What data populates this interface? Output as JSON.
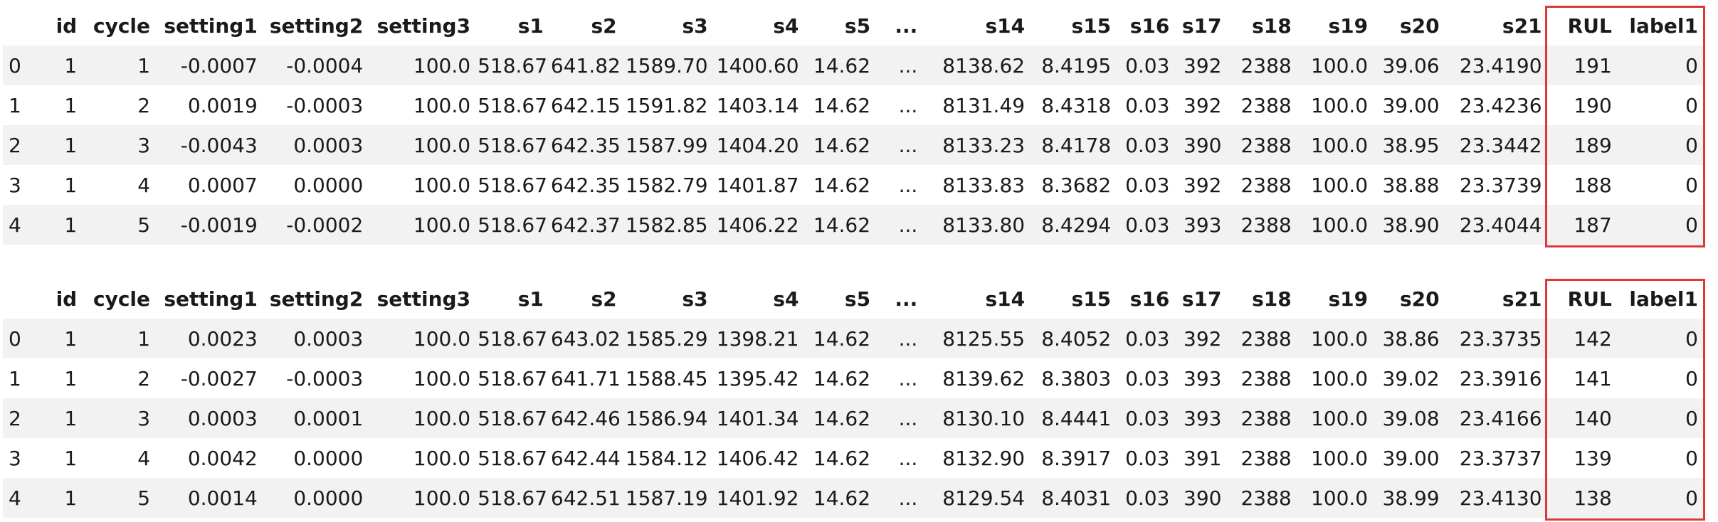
{
  "tables": [
    {
      "columns": [
        "",
        "id",
        "cycle",
        "setting1",
        "setting2",
        "setting3",
        "s1",
        "s2",
        "s3",
        "s4",
        "s5",
        "...",
        "s14",
        "s15",
        "s16",
        "s17",
        "s18",
        "s19",
        "s20",
        "s21",
        "RUL",
        "label1"
      ],
      "rows": [
        [
          "0",
          "1",
          "1",
          "-0.0007",
          "-0.0004",
          "100.0",
          "518.67",
          "641.82",
          "1589.70",
          "1400.60",
          "14.62",
          "...",
          "8138.62",
          "8.4195",
          "0.03",
          "392",
          "2388",
          "100.0",
          "39.06",
          "23.4190",
          "191",
          "0"
        ],
        [
          "1",
          "1",
          "2",
          "0.0019",
          "-0.0003",
          "100.0",
          "518.67",
          "642.15",
          "1591.82",
          "1403.14",
          "14.62",
          "...",
          "8131.49",
          "8.4318",
          "0.03",
          "392",
          "2388",
          "100.0",
          "39.00",
          "23.4236",
          "190",
          "0"
        ],
        [
          "2",
          "1",
          "3",
          "-0.0043",
          "0.0003",
          "100.0",
          "518.67",
          "642.35",
          "1587.99",
          "1404.20",
          "14.62",
          "...",
          "8133.23",
          "8.4178",
          "0.03",
          "390",
          "2388",
          "100.0",
          "38.95",
          "23.3442",
          "189",
          "0"
        ],
        [
          "3",
          "1",
          "4",
          "0.0007",
          "0.0000",
          "100.0",
          "518.67",
          "642.35",
          "1582.79",
          "1401.87",
          "14.62",
          "...",
          "8133.83",
          "8.3682",
          "0.03",
          "392",
          "2388",
          "100.0",
          "38.88",
          "23.3739",
          "188",
          "0"
        ],
        [
          "4",
          "1",
          "5",
          "-0.0019",
          "-0.0002",
          "100.0",
          "518.67",
          "642.37",
          "1582.85",
          "1406.22",
          "14.62",
          "...",
          "8133.80",
          "8.4294",
          "0.03",
          "393",
          "2388",
          "100.0",
          "38.90",
          "23.4044",
          "187",
          "0"
        ]
      ]
    },
    {
      "columns": [
        "",
        "id",
        "cycle",
        "setting1",
        "setting2",
        "setting3",
        "s1",
        "s2",
        "s3",
        "s4",
        "s5",
        "...",
        "s14",
        "s15",
        "s16",
        "s17",
        "s18",
        "s19",
        "s20",
        "s21",
        "RUL",
        "label1"
      ],
      "rows": [
        [
          "0",
          "1",
          "1",
          "0.0023",
          "0.0003",
          "100.0",
          "518.67",
          "643.02",
          "1585.29",
          "1398.21",
          "14.62",
          "...",
          "8125.55",
          "8.4052",
          "0.03",
          "392",
          "2388",
          "100.0",
          "38.86",
          "23.3735",
          "142",
          "0"
        ],
        [
          "1",
          "1",
          "2",
          "-0.0027",
          "-0.0003",
          "100.0",
          "518.67",
          "641.71",
          "1588.45",
          "1395.42",
          "14.62",
          "...",
          "8139.62",
          "8.3803",
          "0.03",
          "393",
          "2388",
          "100.0",
          "39.02",
          "23.3916",
          "141",
          "0"
        ],
        [
          "2",
          "1",
          "3",
          "0.0003",
          "0.0001",
          "100.0",
          "518.67",
          "642.46",
          "1586.94",
          "1401.34",
          "14.62",
          "...",
          "8130.10",
          "8.4441",
          "0.03",
          "393",
          "2388",
          "100.0",
          "39.08",
          "23.4166",
          "140",
          "0"
        ],
        [
          "3",
          "1",
          "4",
          "0.0042",
          "0.0000",
          "100.0",
          "518.67",
          "642.44",
          "1584.12",
          "1406.42",
          "14.62",
          "...",
          "8132.90",
          "8.3917",
          "0.03",
          "391",
          "2388",
          "100.0",
          "39.00",
          "23.3737",
          "139",
          "0"
        ],
        [
          "4",
          "1",
          "5",
          "0.0014",
          "0.0000",
          "100.0",
          "518.67",
          "642.51",
          "1587.19",
          "1401.92",
          "14.62",
          "...",
          "8129.54",
          "8.4031",
          "0.03",
          "390",
          "2388",
          "100.0",
          "38.99",
          "23.4130",
          "138",
          "0"
        ]
      ]
    }
  ],
  "highlight": {
    "color": "#e0373a",
    "columns": [
      "RUL",
      "label1"
    ]
  }
}
